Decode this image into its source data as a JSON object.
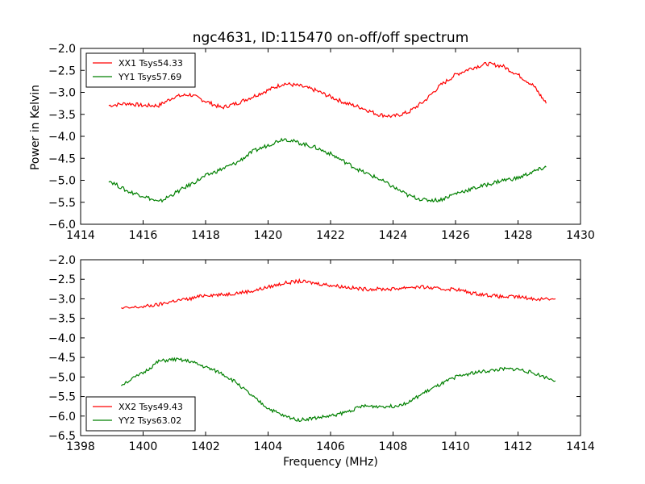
{
  "figure": {
    "title": "ngc4631, ID:115470 on-off/off spectrum",
    "ylabel": "Power in Kelvin",
    "xlabel": "Frequency (MHz)"
  },
  "chart_data": [
    {
      "type": "line",
      "title": "ngc4631, ID:115470 on-off/off spectrum",
      "xlabel": "",
      "ylabel": "Power in Kelvin",
      "xlim": [
        1414,
        1430
      ],
      "ylim": [
        -6.0,
        -2.0
      ],
      "xticks": [
        1414,
        1416,
        1418,
        1420,
        1422,
        1424,
        1426,
        1428,
        1430
      ],
      "yticks": [
        -6.0,
        -5.5,
        -5.0,
        -4.5,
        -4.0,
        -3.5,
        -3.0,
        -2.5,
        -2.0
      ],
      "grid": false,
      "legend": "top-left",
      "series": [
        {
          "name": "XX1 Tsys54.33",
          "color": "#ff0000",
          "x": [
            1414.9,
            1415.5,
            1416.0,
            1416.5,
            1417.0,
            1417.5,
            1418.0,
            1418.5,
            1419.0,
            1419.5,
            1420.0,
            1420.5,
            1421.0,
            1421.5,
            1422.0,
            1422.5,
            1423.0,
            1423.5,
            1424.0,
            1424.5,
            1425.0,
            1425.5,
            1426.0,
            1426.5,
            1427.0,
            1427.5,
            1428.0,
            1428.5,
            1428.9
          ],
          "y": [
            -3.3,
            -3.25,
            -3.3,
            -3.3,
            -3.1,
            -3.05,
            -3.2,
            -3.35,
            -3.25,
            -3.1,
            -2.95,
            -2.8,
            -2.85,
            -2.95,
            -3.1,
            -3.25,
            -3.35,
            -3.5,
            -3.55,
            -3.45,
            -3.2,
            -2.85,
            -2.6,
            -2.45,
            -2.35,
            -2.4,
            -2.6,
            -2.85,
            -3.25
          ]
        },
        {
          "name": "YY1 Tsys57.69",
          "color": "#008000",
          "x": [
            1414.9,
            1415.5,
            1416.0,
            1416.5,
            1417.0,
            1417.5,
            1418.0,
            1418.5,
            1419.0,
            1419.5,
            1420.0,
            1420.5,
            1421.0,
            1421.5,
            1422.0,
            1422.5,
            1423.0,
            1423.5,
            1424.0,
            1424.5,
            1425.0,
            1425.5,
            1426.0,
            1426.5,
            1427.0,
            1427.5,
            1428.0,
            1428.5,
            1428.9
          ],
          "y": [
            -5.0,
            -5.25,
            -5.35,
            -5.5,
            -5.3,
            -5.1,
            -4.9,
            -4.75,
            -4.6,
            -4.35,
            -4.2,
            -4.05,
            -4.15,
            -4.25,
            -4.4,
            -4.6,
            -4.8,
            -4.95,
            -5.15,
            -5.35,
            -5.45,
            -5.45,
            -5.3,
            -5.2,
            -5.1,
            -5.0,
            -4.95,
            -4.8,
            -4.7
          ]
        }
      ]
    },
    {
      "type": "line",
      "title": "",
      "xlabel": "Frequency (MHz)",
      "ylabel": "",
      "xlim": [
        1398,
        1414
      ],
      "ylim": [
        -6.5,
        -2.0
      ],
      "xticks": [
        1398,
        1400,
        1402,
        1404,
        1406,
        1408,
        1410,
        1412,
        1414
      ],
      "yticks": [
        -6.5,
        -6.0,
        -5.5,
        -5.0,
        -4.5,
        -4.0,
        -3.5,
        -3.0,
        -2.5,
        -2.0
      ],
      "grid": false,
      "legend": "bottom-left",
      "series": [
        {
          "name": "XX2 Tsys49.43",
          "color": "#ff0000",
          "x": [
            1399.3,
            1400.0,
            1400.5,
            1401.0,
            1401.5,
            1402.0,
            1402.5,
            1403.0,
            1403.5,
            1404.0,
            1404.5,
            1405.0,
            1405.5,
            1406.0,
            1406.5,
            1407.0,
            1407.5,
            1408.0,
            1408.5,
            1409.0,
            1409.5,
            1410.0,
            1410.5,
            1411.0,
            1411.5,
            1412.0,
            1412.5,
            1413.2
          ],
          "y": [
            -3.25,
            -3.2,
            -3.15,
            -3.05,
            -3.0,
            -2.9,
            -2.9,
            -2.85,
            -2.8,
            -2.7,
            -2.6,
            -2.55,
            -2.6,
            -2.65,
            -2.7,
            -2.75,
            -2.75,
            -2.75,
            -2.7,
            -2.7,
            -2.75,
            -2.75,
            -2.85,
            -2.9,
            -2.95,
            -2.95,
            -3.0,
            -3.0
          ]
        },
        {
          "name": "YY2 Tsys63.02",
          "color": "#008000",
          "x": [
            1399.3,
            1400.0,
            1400.5,
            1401.0,
            1401.5,
            1402.0,
            1402.5,
            1403.0,
            1403.5,
            1404.0,
            1404.5,
            1405.0,
            1405.5,
            1406.0,
            1406.5,
            1407.0,
            1407.5,
            1408.0,
            1408.5,
            1409.0,
            1409.5,
            1410.0,
            1410.5,
            1411.0,
            1411.5,
            1412.0,
            1412.5,
            1413.2
          ],
          "y": [
            -5.2,
            -4.9,
            -4.6,
            -4.55,
            -4.6,
            -4.75,
            -4.9,
            -5.15,
            -5.5,
            -5.8,
            -6.0,
            -6.1,
            -6.05,
            -6.0,
            -5.9,
            -5.75,
            -5.75,
            -5.75,
            -5.65,
            -5.4,
            -5.2,
            -5.0,
            -4.9,
            -4.85,
            -4.8,
            -4.8,
            -4.9,
            -5.1
          ]
        }
      ]
    }
  ]
}
